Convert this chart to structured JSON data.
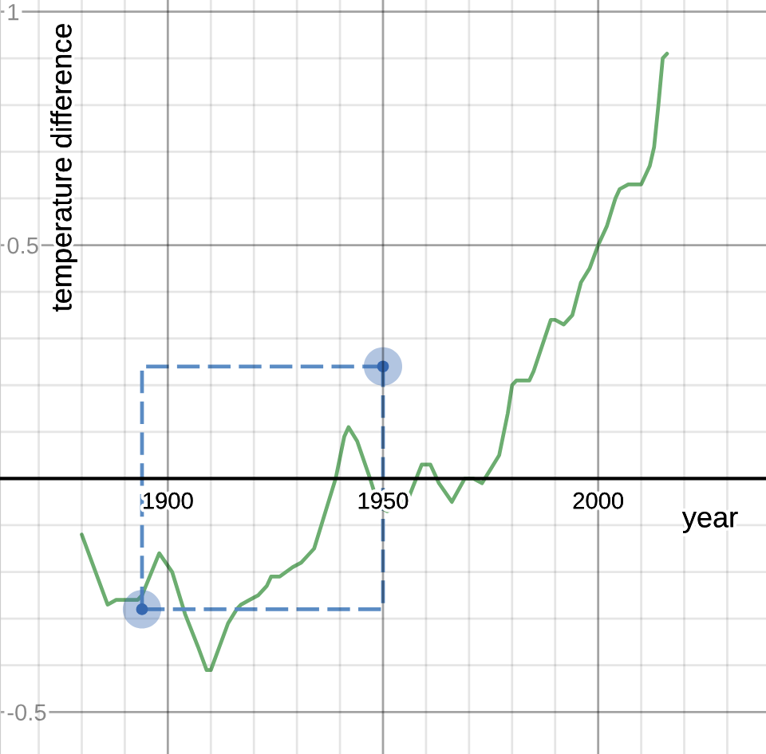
{
  "chart_data": {
    "type": "line",
    "xlabel": "year",
    "ylabel": "temperature difference",
    "grid": true,
    "xlim": [
      1861,
      2039
    ],
    "ylim": [
      -0.59,
      1.025
    ],
    "xticks": [
      {
        "value": 1870,
        "label": null
      },
      {
        "value": 1880,
        "label": null
      },
      {
        "value": 1890,
        "label": null
      },
      1900,
      {
        "value": 1910,
        "label": null
      },
      {
        "value": 1920,
        "label": null
      },
      {
        "value": 1930,
        "label": null
      },
      {
        "value": 1940,
        "label": null
      },
      1950,
      {
        "value": 1960,
        "label": null
      },
      {
        "value": 1970,
        "label": null
      },
      {
        "value": 1980,
        "label": null
      },
      {
        "value": 1990,
        "label": null
      },
      2000,
      {
        "value": 2010,
        "label": null
      },
      {
        "value": 2020,
        "label": null
      },
      {
        "value": 2030,
        "label": null
      }
    ],
    "yticks": [
      -0.5,
      {
        "value": -0.4,
        "label": null
      },
      {
        "value": -0.3,
        "label": null
      },
      {
        "value": -0.2,
        "label": null
      },
      {
        "value": -0.1,
        "label": null
      },
      {
        "value": 0,
        "label": null
      },
      {
        "value": 0.1,
        "label": null
      },
      {
        "value": 0.2,
        "label": null
      },
      {
        "value": 0.3,
        "label": null
      },
      {
        "value": 0.4,
        "label": null
      },
      0.5,
      {
        "value": 0.6,
        "label": null
      },
      {
        "value": 0.7,
        "label": null
      },
      {
        "value": 0.8,
        "label": null
      },
      {
        "value": 0.9,
        "label": null
      },
      1
    ],
    "series": [
      {
        "color": "#6cad70",
        "line_style": "solid",
        "x": [
          1880,
          1886,
          1888,
          1891,
          1893,
          1894,
          1898,
          1901,
          1904,
          1907,
          1909,
          1910,
          1912,
          1914,
          1916,
          1917,
          1919,
          1921,
          1923,
          1924,
          1926,
          1929,
          1931,
          1932,
          1934,
          1936,
          1939,
          1941,
          1942,
          1944,
          1947,
          1949,
          1951,
          1953,
          1956,
          1959,
          1961,
          1963,
          1966,
          1969,
          1971,
          1973,
          1975,
          1977,
          1979,
          1980,
          1981,
          1984,
          1985,
          1989,
          1990,
          1992,
          1994,
          1996,
          1998,
          2000,
          2002,
          2004,
          2005,
          2007,
          2010,
          2012,
          2013,
          2014,
          2015,
          2016
        ],
        "values": [
          -0.12,
          -0.27,
          -0.26,
          -0.26,
          -0.26,
          -0.25,
          -0.16,
          -0.2,
          -0.29,
          -0.36,
          -0.41,
          -0.41,
          -0.36,
          -0.31,
          -0.28,
          -0.27,
          -0.26,
          -0.25,
          -0.23,
          -0.21,
          -0.21,
          -0.19,
          -0.18,
          -0.17,
          -0.15,
          -0.09,
          0.0,
          0.09,
          0.11,
          0.08,
          0.0,
          -0.06,
          -0.07,
          -0.06,
          -0.04,
          0.03,
          0.03,
          -0.01,
          -0.05,
          0.0,
          0.0,
          -0.01,
          0.02,
          0.05,
          0.14,
          0.2,
          0.21,
          0.21,
          0.23,
          0.34,
          0.34,
          0.33,
          0.35,
          0.42,
          0.45,
          0.5,
          0.54,
          0.6,
          0.62,
          0.63,
          0.63,
          0.67,
          0.71,
          0.8,
          0.9,
          0.91
        ]
      },
      {
        "type": "line",
        "color": "#5b8cc4",
        "line_style": "dashed",
        "x": [
          1894,
          1894,
          1950
        ],
        "values": [
          -0.28,
          0.24,
          0.24
        ]
      },
      {
        "type": "line",
        "color": "#5b8cc4",
        "line_style": "dashed",
        "x": [
          1894,
          1950,
          1950
        ],
        "values": [
          -0.28,
          -0.28,
          0.24
        ]
      },
      {
        "type": "scatter",
        "color": "#3567b0",
        "marker": "circle",
        "x": [
          1894,
          1950
        ],
        "values": [
          -0.28,
          0.24
        ]
      }
    ]
  }
}
